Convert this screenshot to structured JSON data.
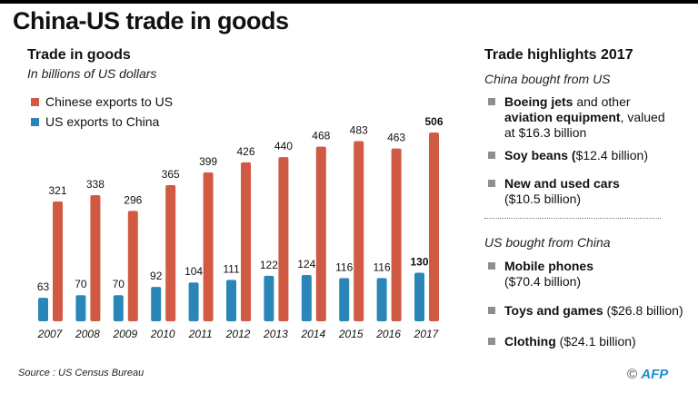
{
  "title": "China-US trade in goods",
  "chart_data": {
    "type": "bar",
    "title": "Trade in goods",
    "subtitle": "In billions of US dollars",
    "categories": [
      "2007",
      "2008",
      "2009",
      "2010",
      "2011",
      "2012",
      "2013",
      "2014",
      "2015",
      "2016",
      "2017"
    ],
    "series": [
      {
        "name": "US exports to China",
        "color": "#2a86b8",
        "values": [
          63,
          70,
          70,
          92,
          104,
          111,
          122,
          124,
          116,
          116,
          130
        ]
      },
      {
        "name": "Chinese exports to US",
        "color": "#d05a43",
        "values": [
          321,
          338,
          296,
          365,
          399,
          426,
          440,
          468,
          483,
          463,
          506
        ]
      }
    ],
    "legend": "top-left",
    "grid": false,
    "ylim": [
      0,
      506
    ]
  },
  "highlights": {
    "title": "Trade highlights 2017",
    "china_bought_label": "China bought from US",
    "china_bought": [
      {
        "bold": "Boeing jets",
        "text": " and other ",
        "bold2": "aviation equipment",
        "text2": ", valued at $16.3 billion"
      },
      {
        "bold": "Soy beans (",
        "text": "$12.4 billion)"
      },
      {
        "bold": "New and used cars",
        "text": "($10.5 billion)"
      }
    ],
    "us_bought_label": "US bought from China",
    "us_bought": [
      {
        "bold": "Mobile phones",
        "text": "($70.4 billion)"
      },
      {
        "bold": "Toys and games",
        "text": " ($26.8 billion)"
      },
      {
        "bold": "Clothing",
        "text": " ($24.1 billion)"
      }
    ]
  },
  "source": "Source : US Census Bureau",
  "credit": {
    "symbol": "©",
    "logo": "AFP"
  }
}
